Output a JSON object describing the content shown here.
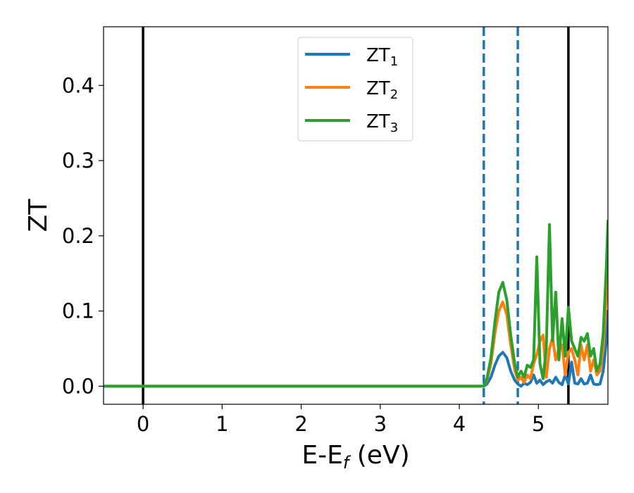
{
  "chart_data": {
    "type": "line",
    "xlabel": "E-E",
    "xlabel_subscript": "f",
    "xlabel_unit": " (eV)",
    "ylabel": "ZT",
    "xlim": [
      -0.5,
      5.88
    ],
    "ylim": [
      -0.024,
      0.478
    ],
    "xticks": [
      0,
      1,
      2,
      3,
      4,
      5
    ],
    "yticks": [
      0.0,
      0.1,
      0.2,
      0.3,
      0.4
    ],
    "xtick_labels": [
      "0",
      "1",
      "2",
      "3",
      "4",
      "5"
    ],
    "ytick_labels": [
      "0.0",
      "0.1",
      "0.2",
      "0.3",
      "0.4"
    ],
    "grid": false,
    "legend_position": "top-center",
    "vertical_lines": [
      {
        "x": 0.0,
        "style": "solid",
        "color": "#000000"
      },
      {
        "x": 5.38,
        "style": "solid",
        "color": "#000000"
      },
      {
        "x": 4.31,
        "style": "dashed",
        "color": "#1f77b4"
      },
      {
        "x": 4.74,
        "style": "dashed",
        "color": "#1f77b4"
      }
    ],
    "series": [
      {
        "name": "ZT",
        "subscript": "1",
        "color": "#1f77b4",
        "x": [
          -0.5,
          4.31,
          4.35,
          4.4,
          4.45,
          4.5,
          4.55,
          4.6,
          4.65,
          4.7,
          4.74,
          4.78,
          4.82,
          4.86,
          4.9,
          4.94,
          4.98,
          5.02,
          5.06,
          5.1,
          5.14,
          5.18,
          5.22,
          5.26,
          5.3,
          5.34,
          5.38,
          5.42,
          5.46,
          5.5,
          5.54,
          5.58,
          5.62,
          5.66,
          5.7,
          5.74,
          5.78,
          5.82,
          5.86,
          5.88
        ],
        "y": [
          0.0,
          0.0,
          0.003,
          0.012,
          0.028,
          0.04,
          0.045,
          0.038,
          0.02,
          0.008,
          0.003,
          0.0,
          0.004,
          0.002,
          0.005,
          0.015,
          0.004,
          0.008,
          0.002,
          0.006,
          0.008,
          0.004,
          0.012,
          0.005,
          0.002,
          0.015,
          0.003,
          0.032,
          0.004,
          0.003,
          0.01,
          0.003,
          0.004,
          0.015,
          0.003,
          0.002,
          0.003,
          0.02,
          0.06,
          0.1
        ]
      },
      {
        "name": "ZT",
        "subscript": "2",
        "color": "#ff7f0e",
        "x": [
          -0.5,
          4.31,
          4.35,
          4.4,
          4.45,
          4.5,
          4.55,
          4.6,
          4.65,
          4.7,
          4.74,
          4.78,
          4.82,
          4.86,
          4.9,
          4.94,
          4.98,
          5.02,
          5.06,
          5.1,
          5.14,
          5.18,
          5.22,
          5.26,
          5.3,
          5.34,
          5.38,
          5.42,
          5.46,
          5.5,
          5.54,
          5.58,
          5.62,
          5.66,
          5.7,
          5.74,
          5.78,
          5.82,
          5.86,
          5.88
        ],
        "y": [
          0.0,
          0.0,
          0.008,
          0.03,
          0.07,
          0.1,
          0.112,
          0.095,
          0.055,
          0.022,
          0.008,
          0.012,
          0.005,
          0.015,
          0.01,
          0.03,
          0.042,
          0.06,
          0.068,
          0.012,
          0.05,
          0.065,
          0.035,
          0.05,
          0.055,
          0.015,
          0.045,
          0.05,
          0.035,
          0.015,
          0.055,
          0.035,
          0.055,
          0.02,
          0.035,
          0.015,
          0.02,
          0.05,
          0.12,
          0.17
        ]
      },
      {
        "name": "ZT",
        "subscript": "3",
        "color": "#2ca02c",
        "x": [
          -0.5,
          4.31,
          4.35,
          4.4,
          4.45,
          4.5,
          4.55,
          4.6,
          4.65,
          4.7,
          4.74,
          4.78,
          4.82,
          4.86,
          4.9,
          4.94,
          4.98,
          5.02,
          5.06,
          5.1,
          5.14,
          5.18,
          5.22,
          5.26,
          5.3,
          5.34,
          5.38,
          5.42,
          5.46,
          5.5,
          5.54,
          5.58,
          5.62,
          5.66,
          5.7,
          5.74,
          5.78,
          5.82,
          5.86,
          5.88
        ],
        "y": [
          0.0,
          0.0,
          0.01,
          0.038,
          0.085,
          0.125,
          0.138,
          0.115,
          0.068,
          0.03,
          0.012,
          0.02,
          0.012,
          0.028,
          0.025,
          0.035,
          0.172,
          0.03,
          0.01,
          0.05,
          0.215,
          0.06,
          0.125,
          0.035,
          0.09,
          0.04,
          0.105,
          0.06,
          0.05,
          0.04,
          0.065,
          0.06,
          0.07,
          0.04,
          0.05,
          0.02,
          0.03,
          0.07,
          0.16,
          0.22
        ]
      }
    ]
  }
}
